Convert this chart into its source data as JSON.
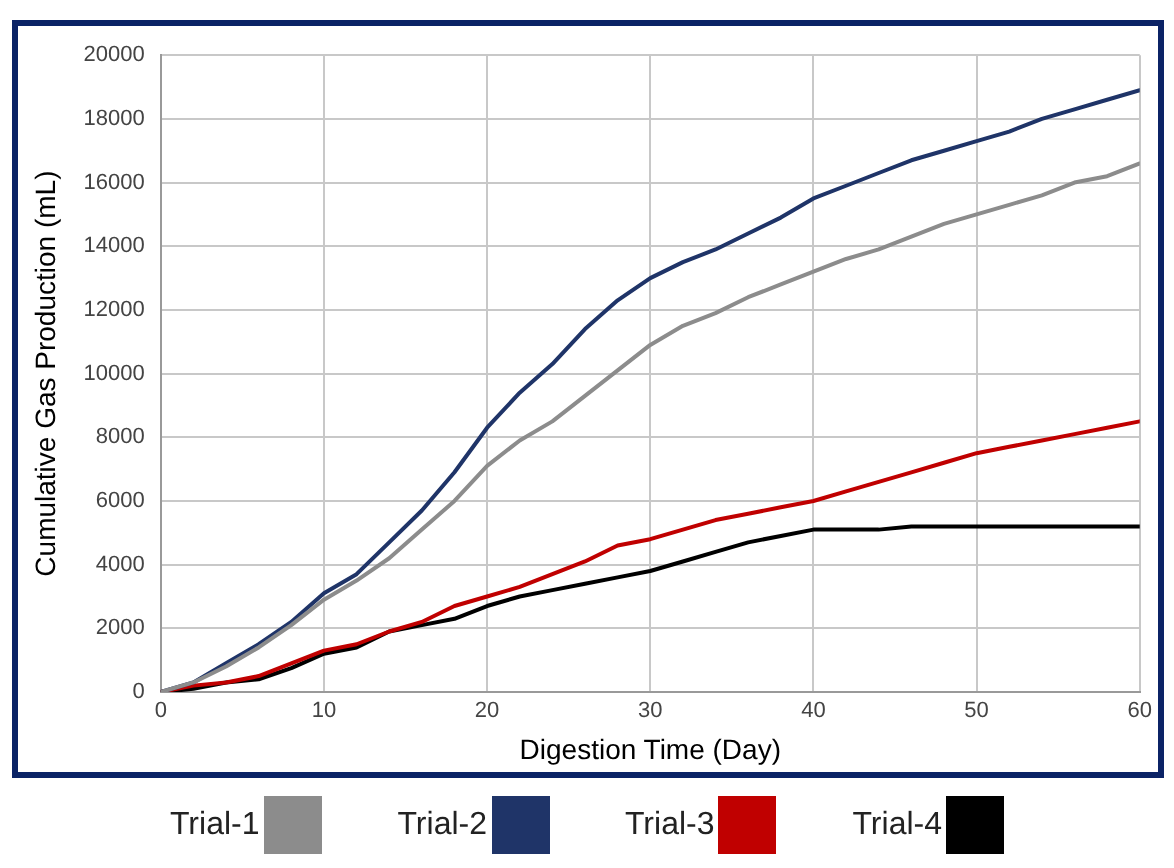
{
  "chart_data": {
    "type": "line",
    "xlabel": "Digestion Time (Day)",
    "ylabel": "Cumulative Gas Production (mL)",
    "x": [
      0,
      2,
      4,
      6,
      8,
      10,
      12,
      14,
      16,
      18,
      20,
      22,
      24,
      26,
      28,
      30,
      32,
      34,
      36,
      38,
      40,
      42,
      44,
      46,
      48,
      50,
      52,
      54,
      56,
      58,
      60
    ],
    "series": [
      {
        "name": "Trial-1",
        "color": "#8c8c8c",
        "values": [
          0,
          300,
          800,
          1400,
          2100,
          2900,
          3500,
          4200,
          5100,
          6000,
          7100,
          7900,
          8500,
          9300,
          10100,
          10900,
          11500,
          11900,
          12400,
          12800,
          13200,
          13600,
          13900,
          14300,
          14700,
          15000,
          15300,
          15600,
          16000,
          16200,
          16600
        ]
      },
      {
        "name": "Trial-2",
        "color": "#1f3468",
        "values": [
          0,
          300,
          900,
          1500,
          2200,
          3100,
          3700,
          4700,
          5700,
          6900,
          8300,
          9400,
          10300,
          11400,
          12300,
          13000,
          13500,
          13900,
          14400,
          14900,
          15500,
          15900,
          16300,
          16700,
          17000,
          17300,
          17600,
          18000,
          18300,
          18600,
          18900
        ]
      },
      {
        "name": "Trial-3",
        "color": "#c00000",
        "values": [
          0,
          200,
          300,
          500,
          900,
          1300,
          1500,
          1900,
          2200,
          2700,
          3000,
          3300,
          3700,
          4100,
          4600,
          4800,
          5100,
          5400,
          5600,
          5800,
          6000,
          6300,
          6600,
          6900,
          7200,
          7500,
          7700,
          7900,
          8100,
          8300,
          8500
        ]
      },
      {
        "name": "Trial-4",
        "color": "#000000",
        "values": [
          0,
          100,
          300,
          400,
          750,
          1200,
          1400,
          1900,
          2100,
          2300,
          2700,
          3000,
          3200,
          3400,
          3600,
          3800,
          4100,
          4400,
          4700,
          4900,
          5100,
          5100,
          5100,
          5200,
          5200,
          5200,
          5200,
          5200,
          5200,
          5200,
          5200
        ]
      }
    ],
    "xlim": [
      0,
      60
    ],
    "xticks": [
      0,
      10,
      20,
      30,
      40,
      50,
      60
    ],
    "ylim": [
      0,
      20000
    ],
    "yticks": [
      0,
      2000,
      4000,
      6000,
      8000,
      10000,
      12000,
      14000,
      16000,
      18000,
      20000
    ],
    "grid": true,
    "legend": "bottom",
    "marker": "none",
    "line_style": "solid"
  }
}
